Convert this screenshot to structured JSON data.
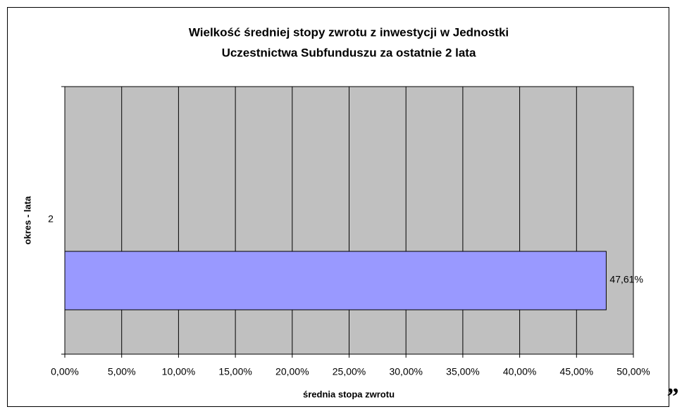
{
  "chart_data": {
    "type": "hbar",
    "title": [
      "Wielkość średniej stopy zwrotu z inwestycji w Jednostki",
      "Uczestnictwa Subfunduszu za ostatnie 2 lata"
    ],
    "x_label": "średnia stopa zwrotu",
    "y_label": "okres - lata",
    "categories": [
      "2"
    ],
    "values": [
      47.61
    ],
    "value_labels": [
      "47,61%"
    ],
    "color": "#9999ff",
    "background": "#c0c0c0",
    "grid": true,
    "xlim": [
      0,
      50
    ],
    "xticks": [
      {
        "value": 0,
        "label": "0,00%"
      },
      {
        "value": 5,
        "label": "5,00%"
      },
      {
        "value": 10,
        "label": "10,00%"
      },
      {
        "value": 15,
        "label": "15,00%"
      },
      {
        "value": 20,
        "label": "20,00%"
      },
      {
        "value": 25,
        "label": "25,00%"
      },
      {
        "value": 30,
        "label": "30,00%"
      },
      {
        "value": 35,
        "label": "35,00%"
      },
      {
        "value": 40,
        "label": "40,00%"
      },
      {
        "value": 45,
        "label": "45,00%"
      },
      {
        "value": 50,
        "label": "50,00%"
      }
    ],
    "annotation": "”"
  }
}
